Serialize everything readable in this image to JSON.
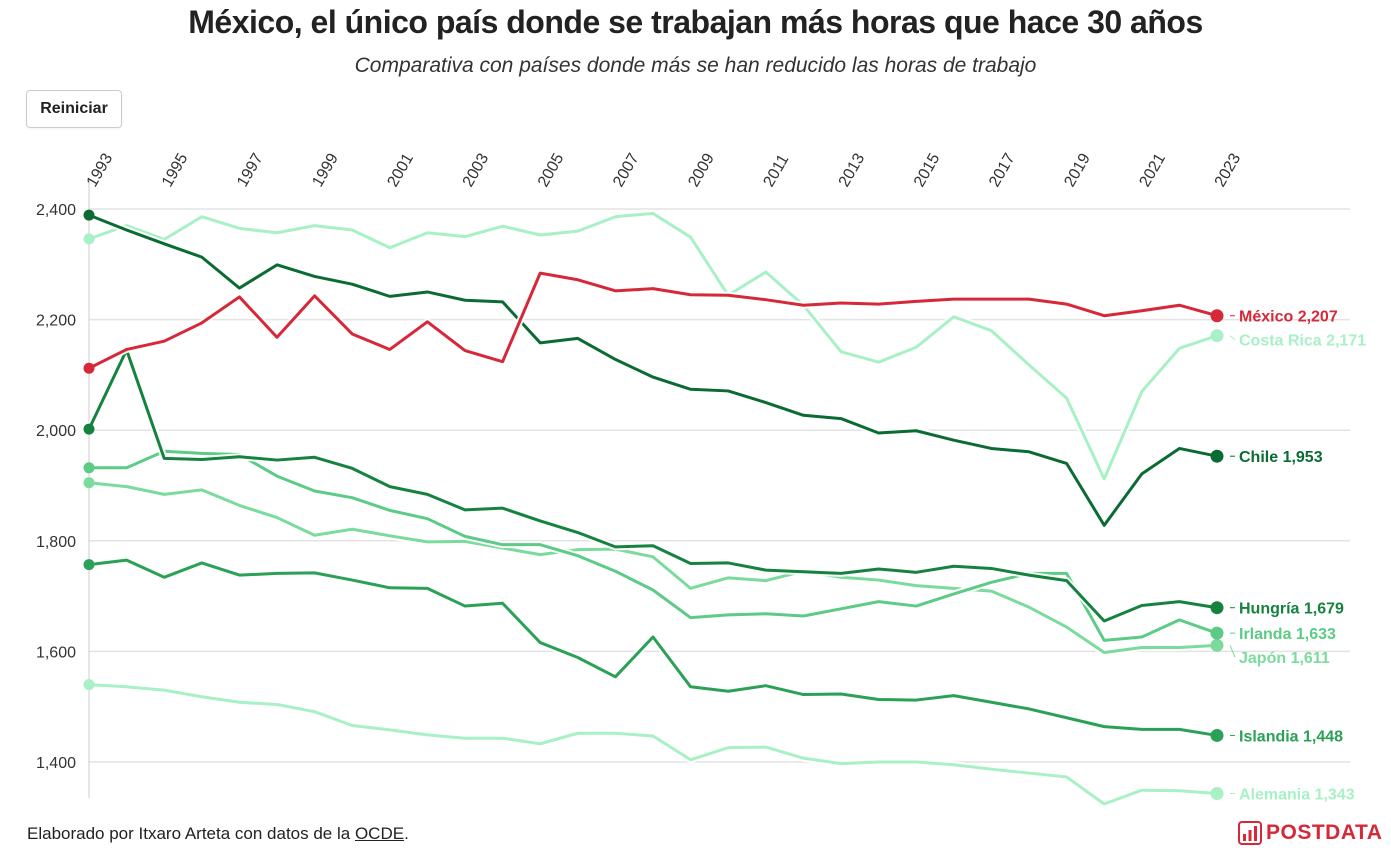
{
  "header": {
    "title": "México, el único país donde se trabajan más horas que hace 30 años",
    "subtitle": "Comparativa con países donde más se han reducido las horas de trabajo"
  },
  "controls": {
    "reset_label": "Reiniciar"
  },
  "footer": {
    "credit_prefix": "Elaborado por Itxaro Arteta con datos de la ",
    "source_link": "OCDE",
    "credit_suffix": "."
  },
  "logo": {
    "text": "POSTDATA",
    "icon": "chart-logo-icon"
  },
  "colors": {
    "mexico": "#d62839",
    "costa_rica": "#a8f0c6",
    "chile": "#0b6b33",
    "hungria": "#16823f",
    "irlanda": "#5ccb86",
    "japon": "#7adb9c",
    "islandia": "#2aa156",
    "alemania": "#a8f0c6",
    "grid": "#e3e3e3"
  },
  "chart_data": {
    "type": "line",
    "title": "México, el único país donde se trabajan más horas que hace 30 años",
    "subtitle": "Comparativa con países donde más se han reducido las horas de trabajo",
    "xlabel": "",
    "ylabel": "",
    "x_tick_labels": [
      "1993",
      "1995",
      "1997",
      "1999",
      "2001",
      "2003",
      "2005",
      "2007",
      "2009",
      "2011",
      "2013",
      "2015",
      "2017",
      "2019",
      "2021",
      "2023"
    ],
    "y_tick_labels": [
      "2,400",
      "2,200",
      "2,000",
      "1,800",
      "1,600",
      "1,400"
    ],
    "y_ticks": [
      2400,
      2200,
      2000,
      1800,
      1600,
      1400
    ],
    "xlim": [
      1993,
      2023
    ],
    "ylim": [
      1330,
      2400
    ],
    "grid": true,
    "legend": "end-labels",
    "x": [
      1993,
      1994,
      1995,
      1996,
      1997,
      1998,
      1999,
      2000,
      2001,
      2002,
      2003,
      2004,
      2005,
      2006,
      2007,
      2008,
      2009,
      2010,
      2011,
      2012,
      2013,
      2014,
      2015,
      2016,
      2017,
      2018,
      2019,
      2020,
      2021,
      2022,
      2023
    ],
    "series": [
      {
        "name": "Alemania",
        "end_label": "Alemania 1,343",
        "color_key": "alemania",
        "values": [
          1540,
          1536,
          1530,
          1518,
          1508,
          1504,
          1491,
          1466,
          1458,
          1449,
          1443,
          1443,
          1433,
          1452,
          1452,
          1447,
          1404,
          1426,
          1427,
          1407,
          1397,
          1400,
          1400,
          1395,
          1387,
          1380,
          1373,
          1324,
          1349,
          1348,
          1343
        ]
      },
      {
        "name": "Costa Rica",
        "end_label": "Costa Rica 2,171",
        "color_key": "costa_rica",
        "values": [
          2346,
          2370,
          2345,
          2386,
          2365,
          2357,
          2370,
          2362,
          2330,
          2357,
          2350,
          2369,
          2353,
          2360,
          2386,
          2392,
          2349,
          2244,
          2286,
          2226,
          2142,
          2123,
          2150,
          2205,
          2180,
          2118,
          2058,
          1912,
          2070,
          2148,
          2171
        ]
      },
      {
        "name": "Japón",
        "end_label": "Japón 1,611",
        "color_key": "japon",
        "values": [
          1905,
          1898,
          1884,
          1892,
          1864,
          1842,
          1810,
          1821,
          1809,
          1798,
          1799,
          1787,
          1775,
          1784,
          1785,
          1771,
          1714,
          1733,
          1728,
          1745,
          1734,
          1729,
          1719,
          1714,
          1709,
          1680,
          1644,
          1598,
          1607,
          1607,
          1611
        ]
      },
      {
        "name": "Irlanda",
        "end_label": "Irlanda 1,633",
        "color_key": "irlanda",
        "values": [
          1932,
          1932,
          1962,
          1958,
          1956,
          1917,
          1890,
          1878,
          1855,
          1840,
          1808,
          1793,
          1793,
          1773,
          1745,
          1711,
          1661,
          1666,
          1668,
          1664,
          1677,
          1690,
          1682,
          1704,
          1725,
          1741,
          1741,
          1620,
          1626,
          1657,
          1633
        ]
      },
      {
        "name": "Islandia",
        "end_label": "Islandia 1,448",
        "color_key": "islandia",
        "values": [
          1757,
          1765,
          1734,
          1760,
          1738,
          1741,
          1742,
          1729,
          1715,
          1714,
          1682,
          1687,
          1616,
          1589,
          1554,
          1626,
          1536,
          1528,
          1538,
          1522,
          1523,
          1513,
          1512,
          1520,
          1508,
          1496,
          1480,
          1464,
          1459,
          1459,
          1448
        ]
      },
      {
        "name": "Hungría",
        "end_label": "Hungría 1,679",
        "color_key": "hungria",
        "values": [
          2002,
          2145,
          1949,
          1947,
          1952,
          1946,
          1951,
          1931,
          1898,
          1884,
          1856,
          1859,
          1836,
          1815,
          1789,
          1791,
          1759,
          1760,
          1747,
          1744,
          1741,
          1749,
          1743,
          1754,
          1750,
          1738,
          1728,
          1655,
          1683,
          1690,
          1679
        ]
      },
      {
        "name": "Chile",
        "end_label": "Chile 1,953",
        "color_key": "chile",
        "values": [
          2389,
          2362,
          2337,
          2313,
          2257,
          2299,
          2278,
          2264,
          2242,
          2250,
          2235,
          2232,
          2158,
          2166,
          2128,
          2096,
          2074,
          2071,
          2050,
          2027,
          2021,
          1995,
          1999,
          1982,
          1967,
          1961,
          1940,
          1828,
          1921,
          1967,
          1953
        ]
      },
      {
        "name": "México",
        "end_label": "México 2,207",
        "color_key": "mexico",
        "values": [
          2112,
          2146,
          2161,
          2194,
          2241,
          2168,
          2243,
          2174,
          2146,
          2196,
          2144,
          2124,
          2284,
          2272,
          2252,
          2256,
          2245,
          2244,
          2236,
          2226,
          2230,
          2228,
          2233,
          2237,
          2237,
          2237,
          2228,
          2207,
          2216,
          2226,
          2207
        ]
      }
    ]
  }
}
